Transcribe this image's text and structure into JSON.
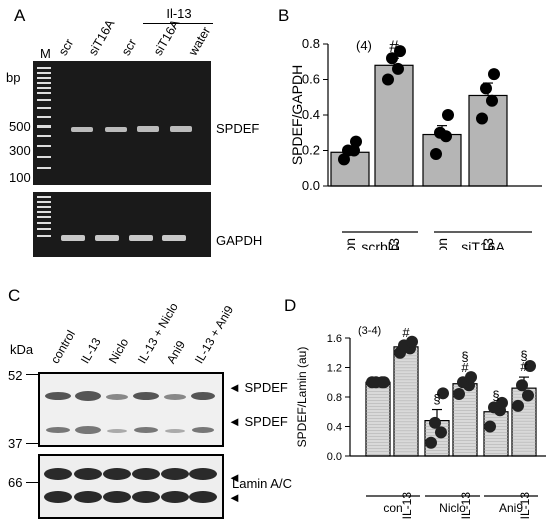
{
  "panels": {
    "A": "A",
    "B": "B",
    "C": "C",
    "D": "D"
  },
  "panelA": {
    "lane_M": "M",
    "lanes": [
      "scr",
      "siT16A",
      "scr",
      "siT16A",
      "water"
    ],
    "treatment": "Il-13",
    "bp": "bp",
    "ladder_ticks": [
      "500",
      "300",
      "100"
    ],
    "band_label_top": "SPDEF",
    "band_label_bottom": "GAPDH"
  },
  "panelC": {
    "kda": "kDa",
    "lanes": [
      "control",
      "IL-13",
      "Niclo",
      "IL-13 + Niclo",
      "Ani9",
      "IL-13 + Ani9"
    ],
    "markers": [
      "52",
      "37",
      "66"
    ],
    "band_labels": [
      "SPDEF",
      "SPDEF",
      "Lamin A/C"
    ]
  },
  "chart_data": [
    {
      "type": "bar",
      "panel": "B",
      "ylabel": "SPDEF/GAPDH",
      "ylim": [
        0,
        0.8
      ],
      "yticks": [
        "0.0",
        "0.2",
        "0.4",
        "0.6",
        "0.8"
      ],
      "categories": [
        "con",
        "IL-13",
        "con",
        "IL-13"
      ],
      "groups": [
        "scrbld",
        "siT16A"
      ],
      "values": [
        0.19,
        0.68,
        0.29,
        0.51
      ],
      "errors": [
        0.02,
        0.04,
        0.05,
        0.07
      ],
      "points": [
        [
          0.15,
          0.2,
          0.2,
          0.25
        ],
        [
          0.6,
          0.66,
          0.72,
          0.76
        ],
        [
          0.18,
          0.28,
          0.3,
          0.4
        ],
        [
          0.38,
          0.48,
          0.55,
          0.63
        ]
      ],
      "n_label": "(4)",
      "significance": [
        "",
        "#",
        "",
        ""
      ],
      "bar_color": "#b5b5b5"
    },
    {
      "type": "bar",
      "panel": "D",
      "ylabel": "SPDEF/Lamin (au)",
      "ylim": [
        0,
        1.6
      ],
      "yticks": [
        "0.0",
        "0.4",
        "0.8",
        "1.2",
        "1.6"
      ],
      "categories": [
        "",
        "IL-13",
        "",
        "IL-13",
        "",
        "IL-13"
      ],
      "groups": [
        "con",
        "Niclo",
        "Ani9"
      ],
      "values": [
        1.0,
        1.48,
        0.48,
        0.98,
        0.6,
        0.92
      ],
      "errors": [
        0.0,
        0.05,
        0.15,
        0.08,
        0.08,
        0.15
      ],
      "points": [
        [
          1.0,
          1.0,
          1.0,
          1.0
        ],
        [
          1.4,
          1.46,
          1.5,
          1.55
        ],
        [
          0.18,
          0.32,
          0.45,
          0.85
        ],
        [
          0.84,
          0.96,
          1.0,
          1.07
        ],
        [
          0.4,
          0.62,
          0.66,
          0.72
        ],
        [
          0.68,
          0.82,
          0.96,
          1.22
        ]
      ],
      "n_label": "(3-4)",
      "significance": [
        "",
        "#",
        "§",
        "§\n#",
        "§",
        "§\n#"
      ],
      "bar_color": "#d9d9d9"
    }
  ]
}
